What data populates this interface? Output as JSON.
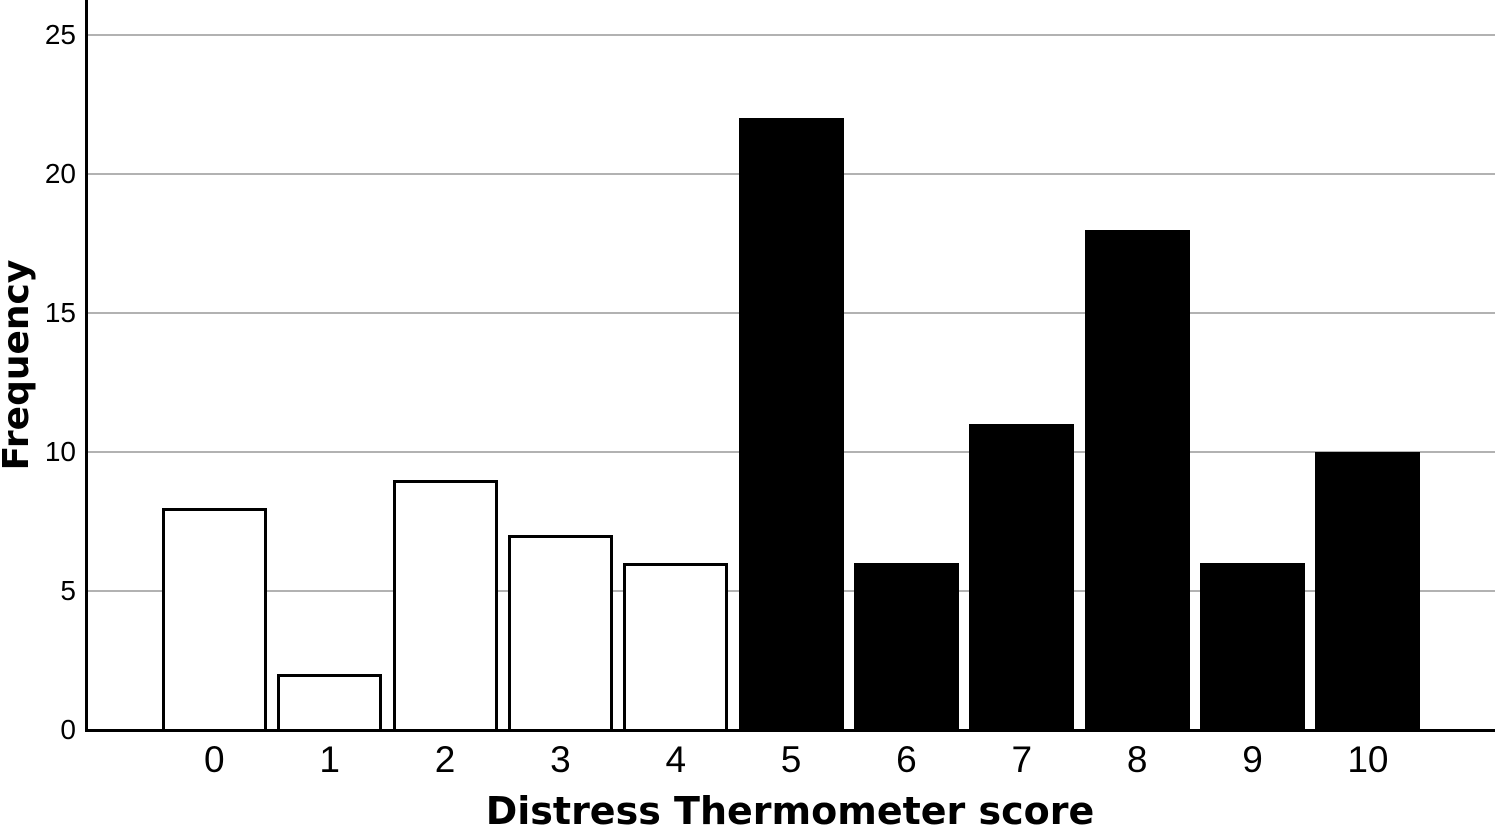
{
  "chart_data": {
    "type": "bar",
    "title": "",
    "xlabel": "Distress Thermometer score",
    "ylabel": "Frequency",
    "categories": [
      "0",
      "1",
      "2",
      "3",
      "4",
      "5",
      "6",
      "7",
      "8",
      "9",
      "10"
    ],
    "values": [
      8,
      2,
      9,
      7,
      6,
      22,
      6,
      11,
      18,
      6,
      10
    ],
    "bar_fills": [
      "#ffffff",
      "#ffffff",
      "#ffffff",
      "#ffffff",
      "#ffffff",
      "#000000",
      "#000000",
      "#000000",
      "#000000",
      "#000000",
      "#000000"
    ],
    "bar_stroke": "#000000",
    "yticks": [
      0,
      5,
      10,
      15,
      20,
      25
    ],
    "ylim": [
      0,
      26.3
    ],
    "grid": "horizontal",
    "gridline_color": "#b2b2b2",
    "axis_color": "#000000",
    "legend": "none"
  }
}
